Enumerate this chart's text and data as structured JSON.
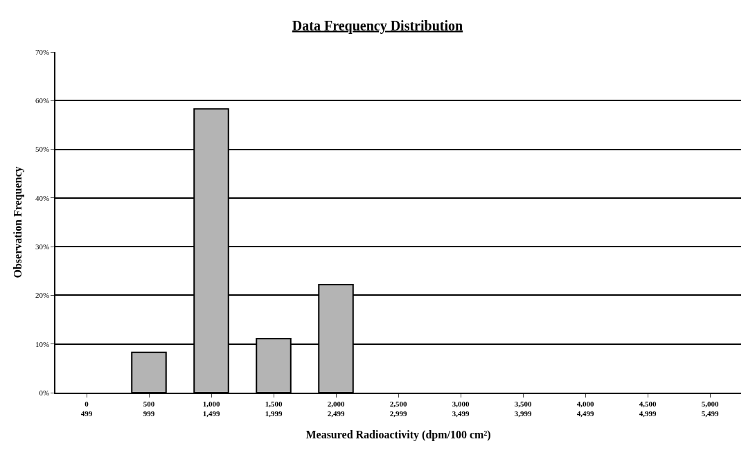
{
  "chart_data": {
    "type": "bar",
    "title": "Data Frequency Distribution",
    "xlabel": "Measured Radioactivity (dpm/100 cm²)",
    "ylabel": "Observation Frequency",
    "categories": [
      "0\n499",
      "500\n999",
      "1,000\n1,499",
      "1,500\n1,999",
      "2,000\n2,499",
      "2,500\n2,999",
      "3,000\n3,499",
      "3,500\n3,999",
      "4,000\n4,499",
      "4,500\n4,999",
      "5,000\n5,499"
    ],
    "values": [
      0,
      8.3,
      58.3,
      11.1,
      22.2,
      0,
      0,
      0,
      0,
      0,
      0
    ],
    "color": "#b4b4b4",
    "ylim": [
      0,
      70
    ],
    "yticks": [
      {
        "value": 0,
        "label": "0%"
      },
      {
        "value": 10,
        "label": "10%"
      },
      {
        "value": 20,
        "label": "20%"
      },
      {
        "value": 30,
        "label": "30%"
      },
      {
        "value": 40,
        "label": "40%"
      },
      {
        "value": 50,
        "label": "50%"
      },
      {
        "value": 60,
        "label": "60%"
      },
      {
        "value": 70,
        "label": "70%"
      }
    ],
    "grid": "y"
  }
}
